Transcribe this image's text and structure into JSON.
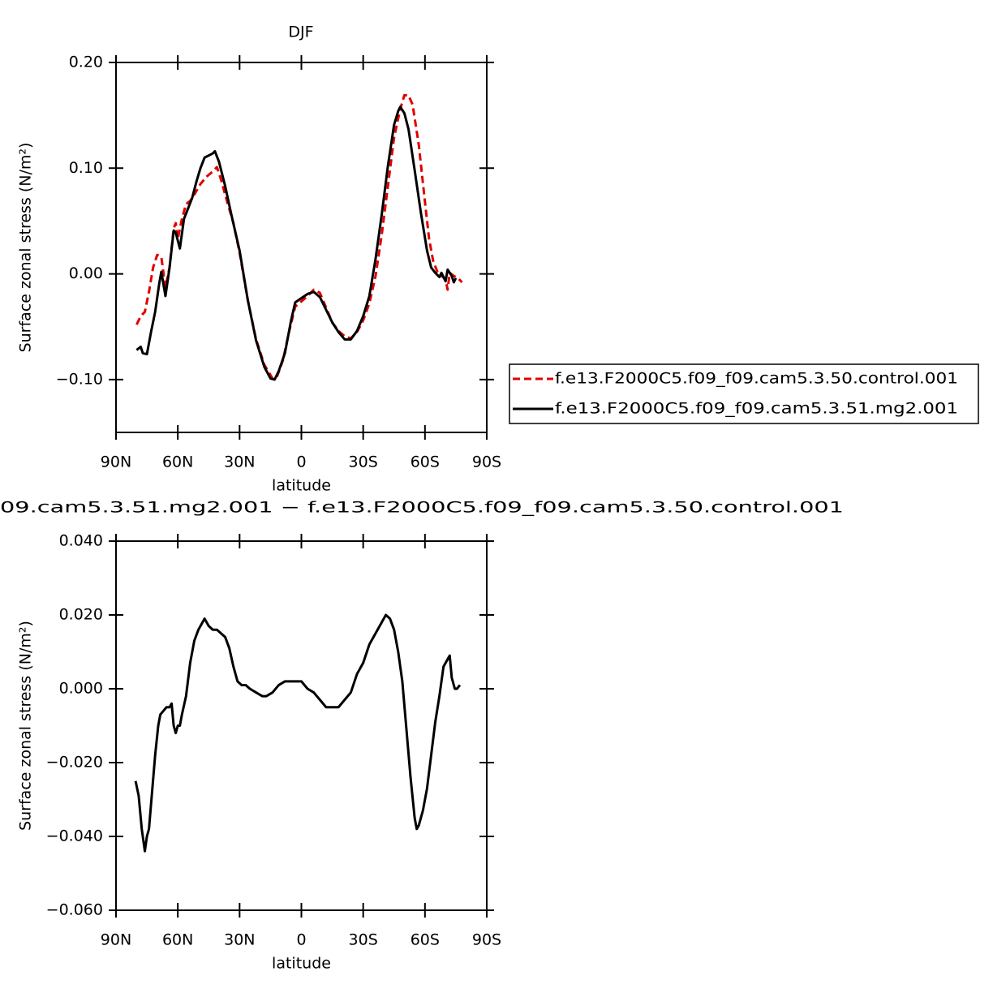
{
  "chart_data": [
    {
      "type": "line",
      "title": "DJF",
      "xlabel": "latitude",
      "ylabel": "Surface zonal stress (N/m²)",
      "xlim": [
        90,
        -90
      ],
      "xticks": [
        {
          "value": 90,
          "label": "90N"
        },
        {
          "value": 60,
          "label": "60N"
        },
        {
          "value": 30,
          "label": "30N"
        },
        0,
        {
          "value": -30,
          "label": "30S"
        },
        {
          "value": -60,
          "label": "60S"
        },
        {
          "value": -90,
          "label": "90S"
        }
      ],
      "ylim": [
        -0.15,
        0.2
      ],
      "yticks": [
        {
          "value": -0.1,
          "label": "−0.10"
        },
        {
          "value": 0,
          "label": "0.00"
        },
        {
          "value": 0.1,
          "label": "0.10"
        },
        {
          "value": 0.2,
          "label": "0.20"
        }
      ],
      "legend": "right",
      "series": [
        {
          "name": "f.e13.F2000C5.f09_f09.cam5.3.50.control.001",
          "color": "#e00000",
          "dash": true,
          "x": [
            80,
            78,
            76,
            74,
            72,
            70,
            68,
            66,
            64,
            62,
            61,
            60,
            58,
            56,
            54,
            52,
            49,
            46,
            43,
            41,
            39,
            36,
            33,
            30,
            26,
            22,
            18,
            14,
            12,
            9,
            6,
            3,
            0,
            -3,
            -6,
            -9,
            -12,
            -15,
            -18,
            -21,
            -24,
            -27,
            -30,
            -33,
            -36,
            -39,
            -42,
            -45,
            -48,
            -50,
            -52,
            -54,
            -57,
            -60,
            -62,
            -64,
            -66,
            -68,
            -70,
            -71,
            -72,
            -74,
            -76,
            -78
          ],
          "values": [
            -0.048,
            -0.04,
            -0.036,
            -0.017,
            0.006,
            0.018,
            0.016,
            -0.013,
            0.006,
            0.043,
            0.048,
            0.033,
            0.052,
            0.066,
            0.069,
            0.075,
            0.085,
            0.092,
            0.097,
            0.101,
            0.089,
            0.068,
            0.048,
            0.02,
            -0.025,
            -0.062,
            -0.086,
            -0.099,
            -0.098,
            -0.082,
            -0.055,
            -0.031,
            -0.026,
            -0.021,
            -0.015,
            -0.018,
            -0.032,
            -0.046,
            -0.054,
            -0.059,
            -0.061,
            -0.055,
            -0.044,
            -0.028,
            -0.002,
            0.037,
            0.083,
            0.129,
            0.156,
            0.169,
            0.169,
            0.16,
            0.122,
            0.068,
            0.033,
            0.012,
            0.002,
            -0.002,
            -0.005,
            -0.015,
            0.001,
            -0.002,
            -0.004,
            -0.008
          ]
        },
        {
          "name": "f.e13.F2000C5.f09_f09.cam5.3.51.mg2.001",
          "color": "#000000",
          "dash": false,
          "x": [
            80,
            78,
            77,
            75,
            73,
            71,
            69,
            68,
            66,
            64,
            62,
            61,
            59,
            57,
            55,
            53,
            51,
            49,
            47,
            45,
            43,
            42,
            40,
            37,
            34,
            30,
            26,
            22,
            18,
            15,
            13,
            11,
            8,
            5,
            3,
            0,
            -3,
            -6,
            -9,
            -12,
            -15,
            -18,
            -21,
            -24,
            -27,
            -30,
            -33,
            -36,
            -39,
            -42,
            -45,
            -47,
            -48,
            -50,
            -52,
            -55,
            -58,
            -61,
            -63,
            -65,
            -67,
            -68,
            -70,
            -71,
            -73,
            -74,
            -75
          ],
          "values": [
            -0.072,
            -0.069,
            -0.075,
            -0.076,
            -0.055,
            -0.036,
            -0.009,
            0.002,
            -0.021,
            0.006,
            0.041,
            0.039,
            0.024,
            0.052,
            0.062,
            0.072,
            0.087,
            0.1,
            0.11,
            0.112,
            0.114,
            0.116,
            0.106,
            0.083,
            0.056,
            0.022,
            -0.025,
            -0.063,
            -0.088,
            -0.099,
            -0.1,
            -0.092,
            -0.075,
            -0.044,
            -0.027,
            -0.023,
            -0.019,
            -0.017,
            -0.022,
            -0.034,
            -0.046,
            -0.055,
            -0.062,
            -0.062,
            -0.054,
            -0.04,
            -0.021,
            0.014,
            0.056,
            0.102,
            0.141,
            0.154,
            0.158,
            0.152,
            0.137,
            0.098,
            0.058,
            0.022,
            0.006,
            0.001,
            -0.003,
            0.001,
            -0.007,
            0.004,
            -0.002,
            -0.008,
            -0.004
          ]
        }
      ]
    },
    {
      "type": "line",
      "title": "09.cam5.3.51.mg2.001 − f.e13.F2000C5.f09_f09.cam5.3.50.control.001",
      "xlabel": "latitude",
      "ylabel": "Surface zonal stress (N/m²)",
      "xlim": [
        90,
        -90
      ],
      "xticks": [
        {
          "value": 90,
          "label": "90N"
        },
        {
          "value": 60,
          "label": "60N"
        },
        {
          "value": 30,
          "label": "30N"
        },
        0,
        {
          "value": -30,
          "label": "30S"
        },
        {
          "value": -60,
          "label": "60S"
        },
        {
          "value": -90,
          "label": "90S"
        }
      ],
      "ylim": [
        -0.06,
        0.04
      ],
      "yticks": [
        {
          "value": -0.06,
          "label": "−0.060"
        },
        {
          "value": -0.04,
          "label": "−0.040"
        },
        {
          "value": -0.02,
          "label": "−0.020"
        },
        {
          "value": 0,
          "label": "0.000"
        },
        {
          "value": 0.02,
          "label": "0.020"
        },
        {
          "value": 0.04,
          "label": "0.040"
        }
      ],
      "series": [
        {
          "color": "#000000",
          "dash": false,
          "x": [
            80.5,
            79,
            77.5,
            76,
            75,
            74,
            72.5,
            71,
            69.5,
            68.5,
            67,
            65.5,
            64,
            63,
            62,
            61,
            60,
            59,
            58,
            56,
            54,
            52,
            50,
            48,
            47,
            45,
            43,
            41,
            39,
            37,
            35,
            33,
            31,
            29,
            27,
            25,
            22,
            19,
            17,
            14,
            11,
            8,
            6,
            3,
            0,
            -3,
            -6,
            -9,
            -12,
            -15,
            -18,
            -21,
            -24,
            -27,
            -30,
            -33,
            -36,
            -39,
            -41,
            -43,
            -45,
            -47,
            -49,
            -51,
            -53,
            -55,
            -56,
            -57,
            -59,
            -61,
            -63,
            -65,
            -67,
            -69,
            -71,
            -72,
            -73,
            -74.5,
            -75.5,
            -77
          ],
          "values": [
            -0.025,
            -0.029,
            -0.038,
            -0.044,
            -0.04,
            -0.038,
            -0.028,
            -0.018,
            -0.01,
            -0.007,
            -0.006,
            -0.005,
            -0.005,
            -0.004,
            -0.01,
            -0.012,
            -0.01,
            -0.01,
            -0.007,
            -0.002,
            0.007,
            0.013,
            0.016,
            0.018,
            0.019,
            0.017,
            0.016,
            0.016,
            0.015,
            0.014,
            0.011,
            0.006,
            0.002,
            0.001,
            0.001,
            0,
            -0.001,
            -0.002,
            -0.002,
            -0.001,
            0.001,
            0.002,
            0.002,
            0.002,
            0.002,
            0,
            -0.001,
            -0.003,
            -0.005,
            -0.005,
            -0.005,
            -0.003,
            -0.001,
            0.004,
            0.007,
            0.012,
            0.015,
            0.018,
            0.02,
            0.019,
            0.016,
            0.01,
            0.002,
            -0.011,
            -0.024,
            -0.035,
            -0.038,
            -0.037,
            -0.033,
            -0.027,
            -0.018,
            -0.009,
            -0.002,
            0.006,
            0.008,
            0.009,
            0.003,
            0,
            0,
            0.001
          ]
        }
      ]
    }
  ]
}
